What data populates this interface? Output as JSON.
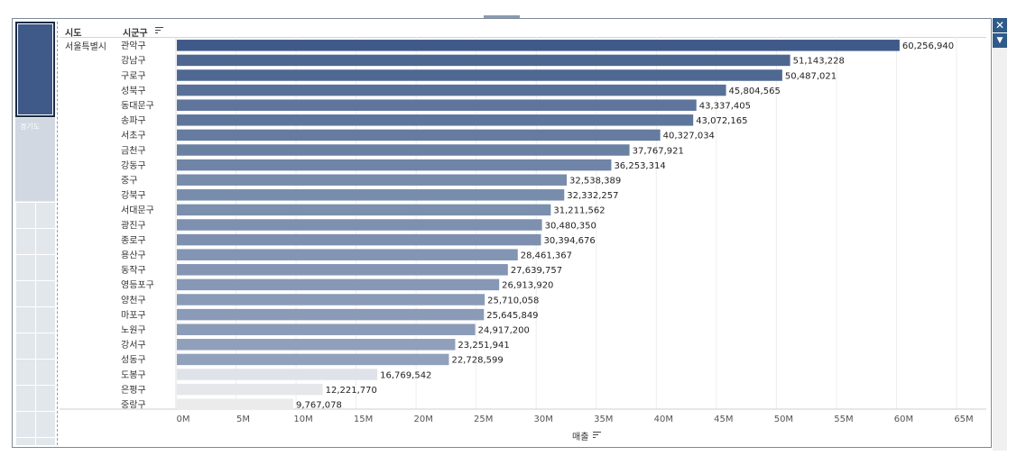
{
  "header": {
    "col1": "시도",
    "col2": "시군구"
  },
  "minimap": {
    "gyeonggi_label": "경기도"
  },
  "sido": "서울특별시",
  "chart_data": {
    "type": "bar",
    "orientation": "horizontal",
    "categories": [
      "관악구",
      "강남구",
      "구로구",
      "성북구",
      "동대문구",
      "송파구",
      "서초구",
      "금천구",
      "강동구",
      "중구",
      "강북구",
      "서대문구",
      "광진구",
      "종로구",
      "용산구",
      "동작구",
      "영등포구",
      "양천구",
      "마포구",
      "노원구",
      "강서구",
      "성동구",
      "도봉구",
      "은평구",
      "중랑구"
    ],
    "values": [
      60256940,
      51143228,
      50487021,
      45804565,
      43337405,
      43072165,
      40327034,
      37767921,
      36253314,
      32538389,
      32332257,
      31211562,
      30480350,
      30394676,
      28461367,
      27639757,
      26913920,
      25710058,
      25645849,
      24917200,
      23251941,
      22728599,
      16769542,
      12221770,
      9767078
    ],
    "value_labels": [
      "60,256,940",
      "51,143,228",
      "50,487,021",
      "45,804,565",
      "43,337,405",
      "43,072,165",
      "40,327,034",
      "37,767,921",
      "36,253,314",
      "32,538,389",
      "32,332,257",
      "31,211,562",
      "30,480,350",
      "30,394,676",
      "28,461,367",
      "27,639,757",
      "26,913,920",
      "25,710,058",
      "25,645,849",
      "24,917,200",
      "23,251,941",
      "22,728,599",
      "16,769,542",
      "12,221,770",
      "9,767,078"
    ],
    "xticks": [
      "0M",
      "5M",
      "10M",
      "15M",
      "20M",
      "25M",
      "30M",
      "35M",
      "40M",
      "45M",
      "50M",
      "55M",
      "60M",
      "65M"
    ],
    "xlim": [
      0,
      65000000
    ],
    "xlabel": "매출",
    "grid": true,
    "colors": {
      "dark": "#3f5a88",
      "light": "#dfe3e9",
      "lightest": "#ebebeb"
    }
  }
}
